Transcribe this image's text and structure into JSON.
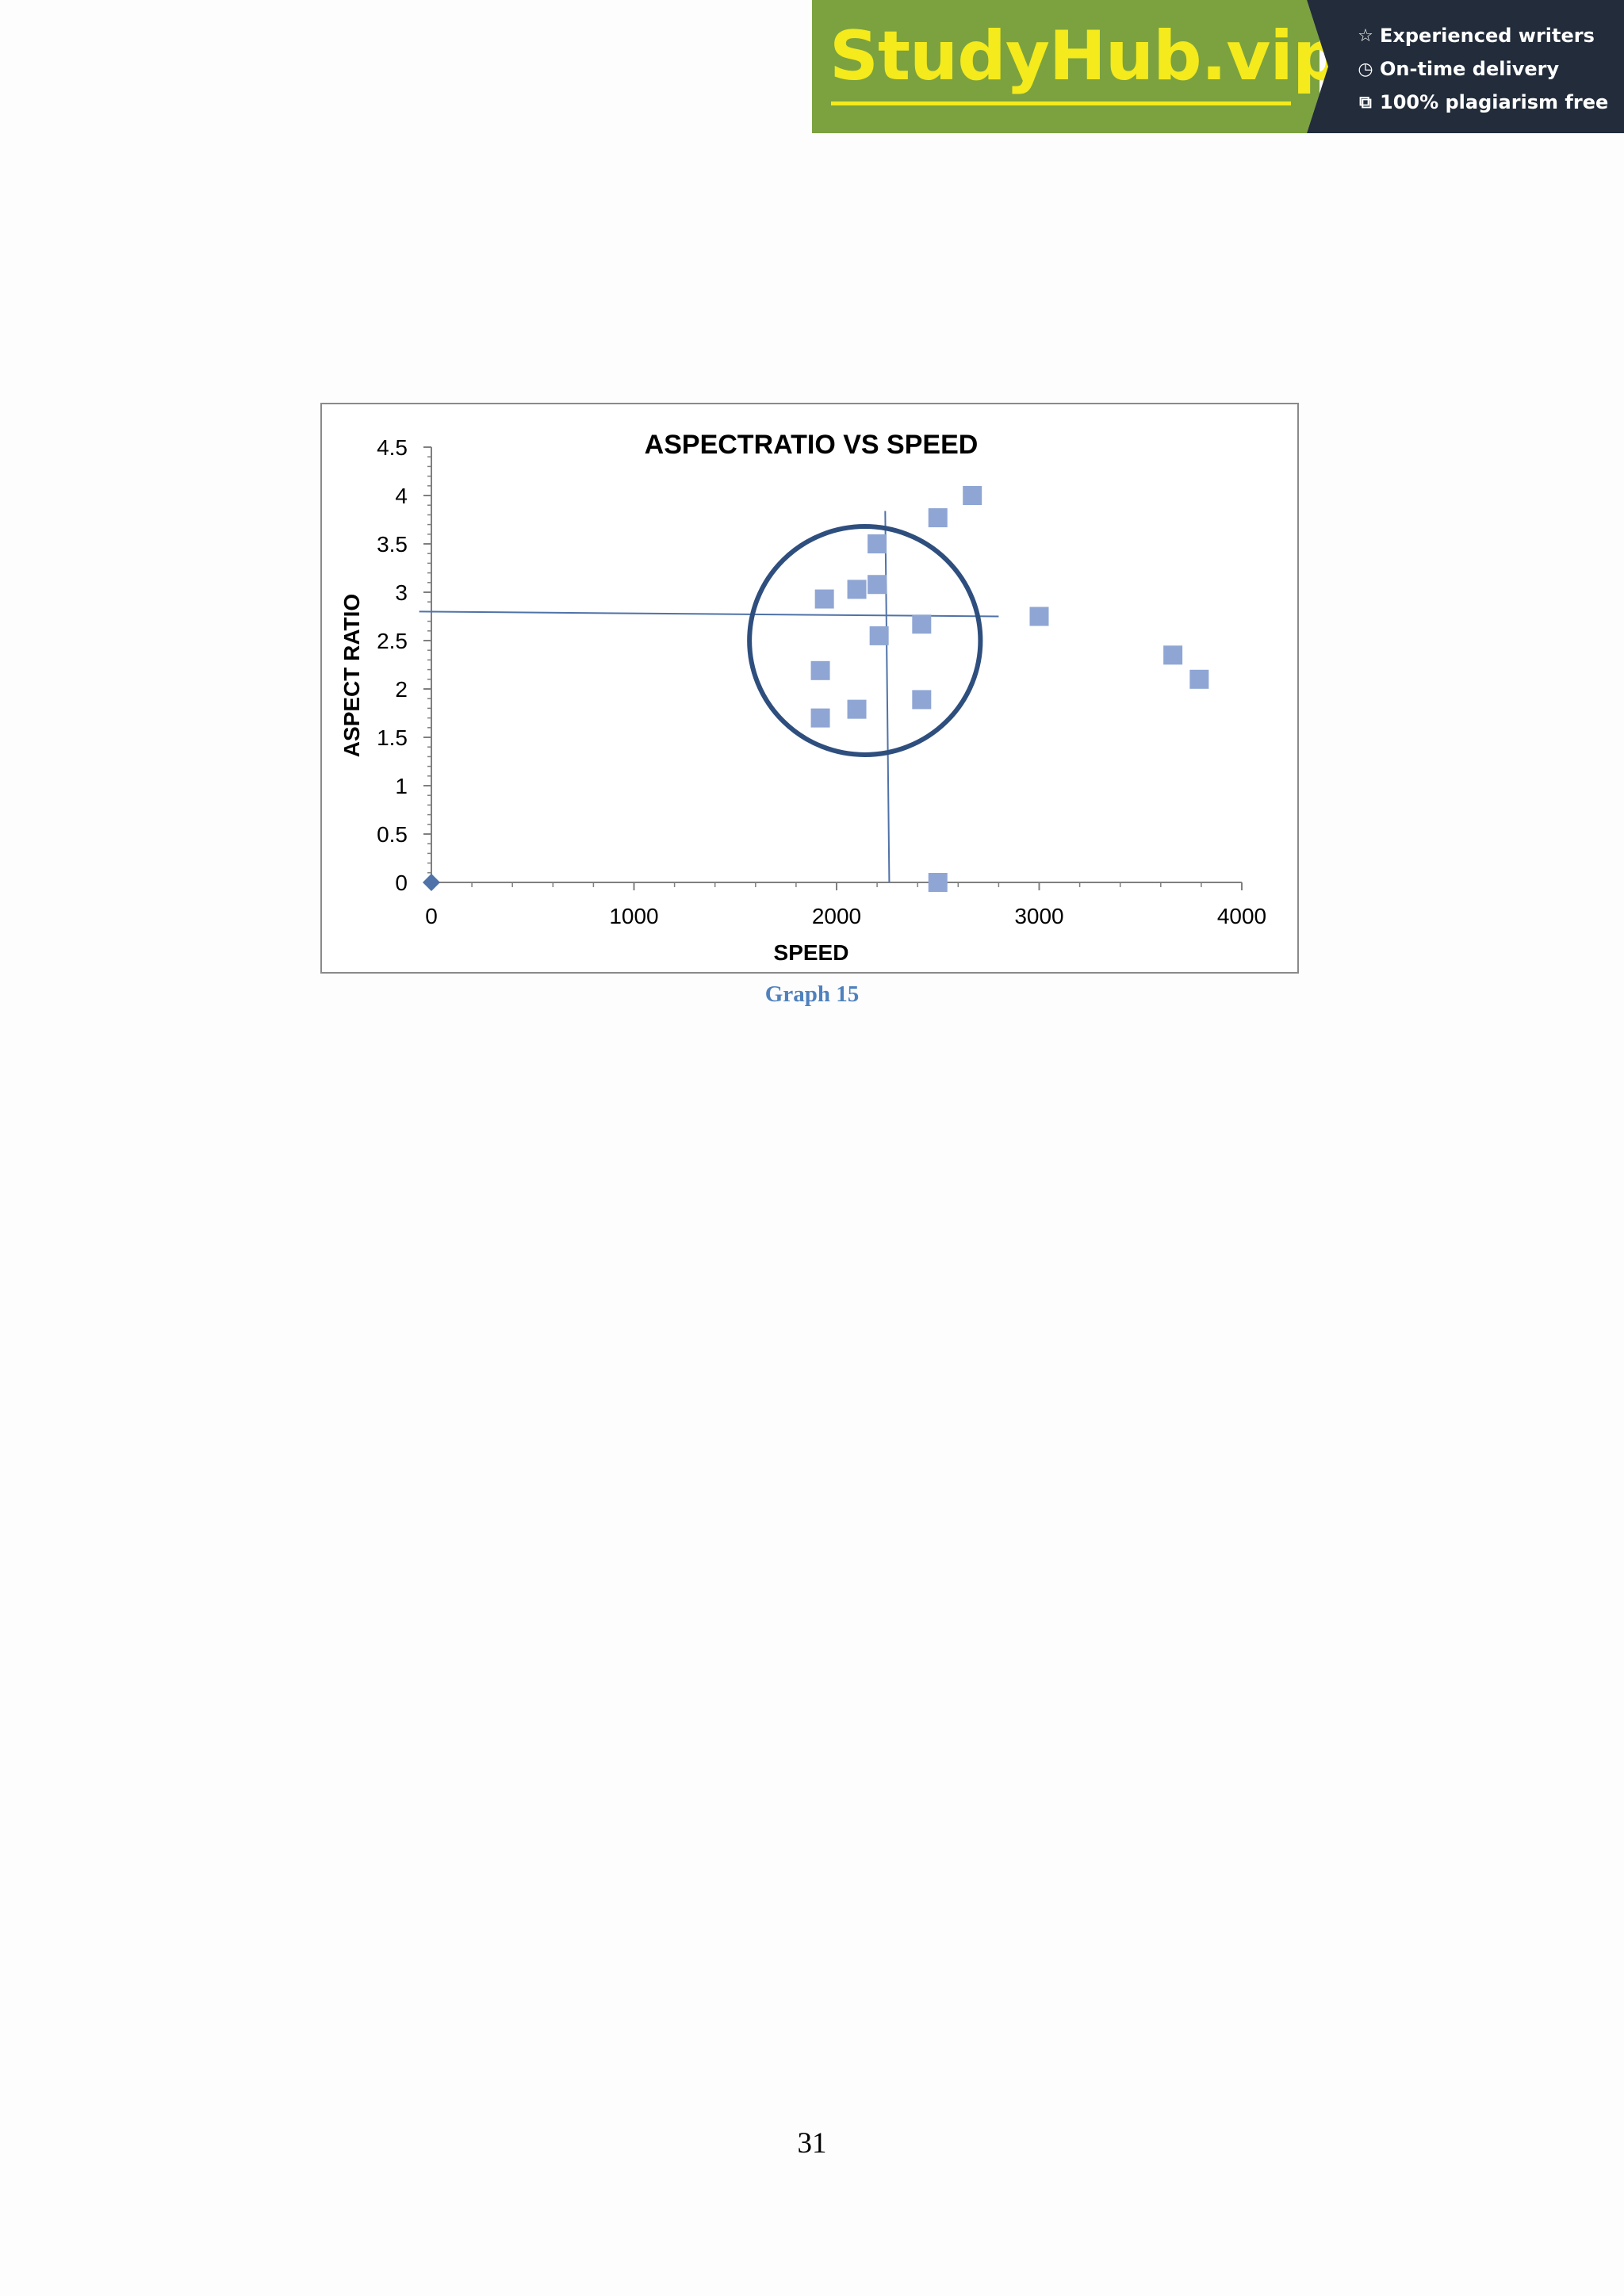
{
  "banner": {
    "logo_text": "StudyHub.vip",
    "features": [
      {
        "icon": "star-outline-icon",
        "glyph": "☆",
        "label": "Experienced writers"
      },
      {
        "icon": "clock-icon",
        "glyph": "◷",
        "label": "On-time delivery"
      },
      {
        "icon": "copy-icon",
        "glyph": "⧉",
        "label": "100% plagiarism free"
      }
    ],
    "colors": {
      "green": "#7ba23f",
      "dark": "#222c3a",
      "logo": "#f4ea1c"
    }
  },
  "chart_data": {
    "type": "scatter",
    "title": "ASPECTRATIO VS SPEED",
    "xlabel": "SPEED",
    "ylabel": "ASPECT RATIO",
    "xlim": [
      0,
      4000
    ],
    "ylim": [
      0,
      4.5
    ],
    "xticks": [
      "0",
      "1000",
      "2000",
      "3000",
      "4000"
    ],
    "yticks": [
      "0",
      "0.5",
      "1",
      "1.5",
      "2",
      "2.5",
      "3",
      "3.5",
      "4",
      "4.5"
    ],
    "grid": false,
    "series": [
      {
        "marker": "diamond",
        "color": "#4f72a8",
        "points": [
          [
            0,
            0
          ]
        ]
      },
      {
        "marker": "square",
        "color": "#8fa6d4",
        "points": [
          [
            2670,
            4.0
          ],
          [
            2500,
            3.77
          ],
          [
            2200,
            3.5
          ],
          [
            2200,
            3.08
          ],
          [
            2100,
            3.03
          ],
          [
            1940,
            2.93
          ],
          [
            3000,
            2.75
          ],
          [
            2420,
            2.67
          ],
          [
            2210,
            2.55
          ],
          [
            3660,
            2.35
          ],
          [
            1920,
            2.19
          ],
          [
            3790,
            2.1
          ],
          [
            2420,
            1.89
          ],
          [
            2100,
            1.79
          ],
          [
            1920,
            1.7
          ],
          [
            2500,
            0.0
          ]
        ]
      }
    ],
    "annotations": {
      "circle": {
        "center": [
          2140,
          2.5
        ],
        "radius_x": 570,
        "radius_y": 1.18,
        "color": "#2e4e7e"
      },
      "lines": [
        {
          "from": [
            -60,
            2.8
          ],
          "to": [
            2800,
            2.75
          ],
          "color": "#4f72a8"
        },
        {
          "from": [
            2240,
            3.84
          ],
          "to": [
            2260,
            0.0
          ],
          "color": "#4f72a8"
        }
      ]
    }
  },
  "caption": "Graph 15",
  "page_number": "31"
}
